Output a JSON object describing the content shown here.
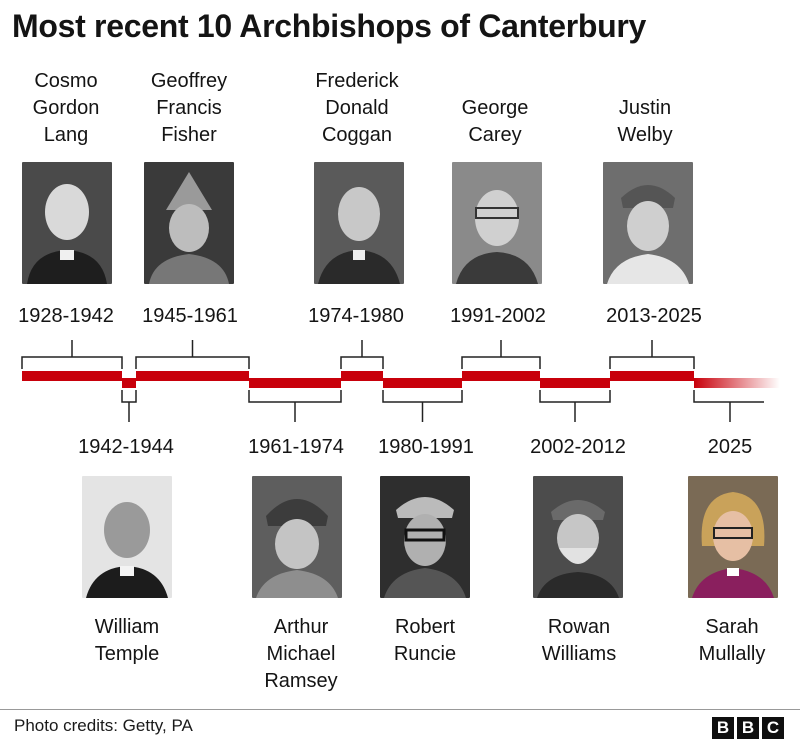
{
  "title": "Most recent 10 Archbishops of Canterbury",
  "colors": {
    "timeline_red": "#c8000b",
    "bracket": "#222222"
  },
  "archbishops": [
    {
      "name": "Cosmo\nGordon\nLang",
      "years": "1928-1942",
      "start": 1928,
      "end": 1942,
      "position": "above"
    },
    {
      "name": "William\nTemple",
      "years": "1942-1944",
      "start": 1942,
      "end": 1944,
      "position": "below"
    },
    {
      "name": "Geoffrey\nFrancis\nFisher",
      "years": "1945-1961",
      "start": 1945,
      "end": 1961,
      "position": "above"
    },
    {
      "name": "Arthur\nMichael\nRamsey",
      "years": "1961-1974",
      "start": 1961,
      "end": 1974,
      "position": "below"
    },
    {
      "name": "Frederick\nDonald\nCoggan",
      "years": "1974-1980",
      "start": 1974,
      "end": 1980,
      "position": "above"
    },
    {
      "name": "Robert\nRuncie",
      "years": "1980-1991",
      "start": 1980,
      "end": 1991,
      "position": "below"
    },
    {
      "name": "George\nCarey",
      "years": "1991-2002",
      "start": 1991,
      "end": 2002,
      "position": "above"
    },
    {
      "name": "Rowan\nWilliams",
      "years": "2002-2012",
      "start": 2002,
      "end": 2012,
      "position": "below"
    },
    {
      "name": "Justin\nWelby",
      "years": "2013-2025",
      "start": 2013,
      "end": 2025,
      "position": "above"
    },
    {
      "name": "Sarah\nMullally",
      "years": "2025",
      "start": 2025,
      "end": null,
      "position": "below"
    }
  ],
  "footer": {
    "credits": "Photo credits: Getty, PA",
    "logo_letters": [
      "B",
      "B",
      "C"
    ]
  }
}
